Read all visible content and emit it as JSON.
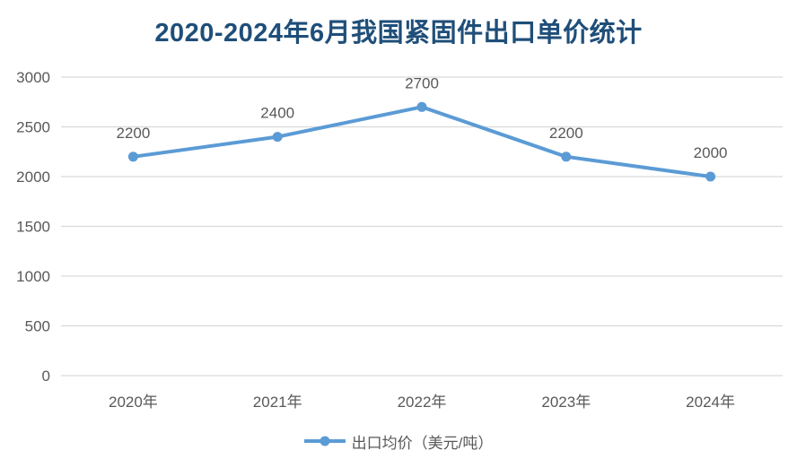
{
  "title": "2020-2024年6月我国紧固件出口单价统计",
  "legend": {
    "label": "出口均价（美元/吨）"
  },
  "colors": {
    "title": "#1F4E79",
    "series": "#5B9BD5",
    "gridline": "#D9D9D9",
    "axis_label": "#595959",
    "data_label": "#595959",
    "background": "#FFFFFF"
  },
  "chart_data": {
    "type": "line",
    "title": "2020-2024年6月我国紧固件出口单价统计",
    "categories": [
      "2020年",
      "2021年",
      "2022年",
      "2023年",
      "2024年"
    ],
    "series": [
      {
        "name": "出口均价（美元/吨）",
        "values": [
          2200,
          2400,
          2700,
          2200,
          2000
        ]
      }
    ],
    "data_labels": [
      2200,
      2400,
      2700,
      2200,
      2000
    ],
    "xlabel": "",
    "ylabel": "",
    "ylim": [
      0,
      3000
    ],
    "yticks": [
      0,
      500,
      1000,
      1500,
      2000,
      2500,
      3000
    ],
    "grid": true,
    "marker": "circle",
    "legend_position": "bottom"
  }
}
